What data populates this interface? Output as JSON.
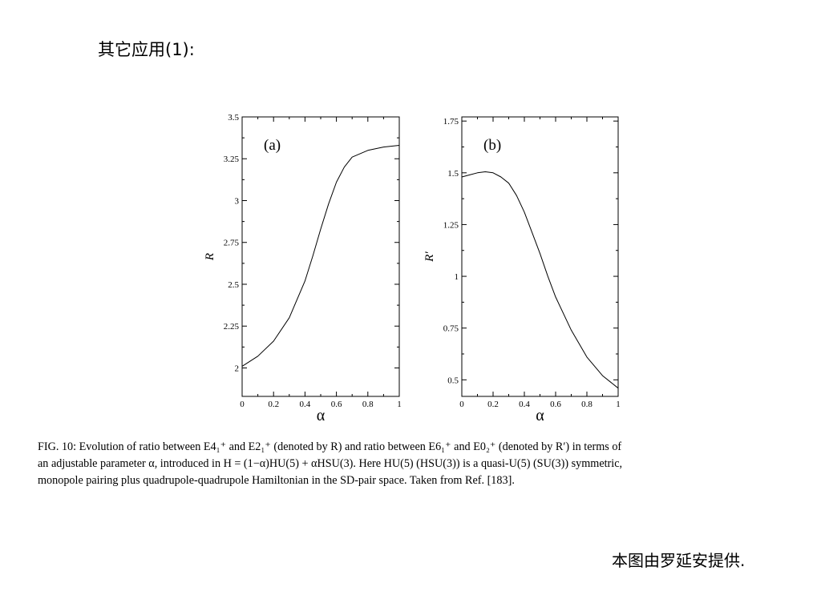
{
  "slide": {
    "title": "其它应用(1):",
    "credit": "本图由罗延安提供."
  },
  "caption": {
    "lines": [
      "FIG. 10: Evolution of ratio between E4₁⁺ and E2₁⁺ (denoted by R) and ratio between E6₁⁺ and E0₂⁺ (denoted by R′) in terms of",
      "an adjustable parameter α, introduced in H = (1−α)HU(5) + αHSU(3). Here HU(5) (HSU(3)) is a quasi-U(5) (SU(3)) symmetric,",
      "monopole pairing plus quadrupole-quadrupole Hamiltonian in the SD-pair space. Taken from Ref. [183]."
    ]
  },
  "chart_data": [
    {
      "type": "line",
      "panel_label": "(a)",
      "xlabel": "α",
      "ylabel": "R",
      "xlim": [
        0,
        1
      ],
      "ylim": [
        1.83,
        3.5
      ],
      "xticks": [
        "0",
        "0.2",
        "0.4",
        "0.6",
        "0.8",
        "1"
      ],
      "yticks": [
        "2",
        "2.25",
        "2.5",
        "2.75",
        "3",
        "3.25",
        "3.5"
      ],
      "x": [
        0,
        0.1,
        0.2,
        0.3,
        0.4,
        0.45,
        0.5,
        0.55,
        0.6,
        0.65,
        0.7,
        0.8,
        0.9,
        1.0
      ],
      "y": [
        2.01,
        2.07,
        2.16,
        2.3,
        2.52,
        2.67,
        2.83,
        2.98,
        3.11,
        3.2,
        3.26,
        3.3,
        3.32,
        3.33
      ]
    },
    {
      "type": "line",
      "panel_label": "(b)",
      "xlabel": "α",
      "ylabel": "R′",
      "xlim": [
        0,
        1
      ],
      "ylim": [
        0.42,
        1.77
      ],
      "xticks": [
        "0",
        "0.2",
        "0.4",
        "0.6",
        "0.8",
        "1"
      ],
      "yticks": [
        "0.5",
        "0.75",
        "1",
        "1.25",
        "1.5",
        "1.75"
      ],
      "x": [
        0,
        0.05,
        0.1,
        0.15,
        0.2,
        0.25,
        0.3,
        0.35,
        0.4,
        0.45,
        0.5,
        0.55,
        0.6,
        0.7,
        0.8,
        0.9,
        1.0
      ],
      "y": [
        1.48,
        1.49,
        1.5,
        1.505,
        1.5,
        1.48,
        1.45,
        1.39,
        1.31,
        1.21,
        1.11,
        1.0,
        0.9,
        0.74,
        0.61,
        0.52,
        0.46
      ]
    }
  ]
}
